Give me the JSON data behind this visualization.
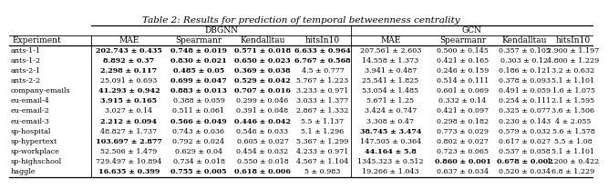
{
  "title": "Table 2: Results for prediction of temporal betweenness centrality",
  "col_headers": [
    "Experiment",
    "MAE",
    "Spearmanr",
    "Kendalltau",
    "hitsIn10",
    "MAE",
    "Spearmanr",
    "Kendalltau",
    "hitsIn10"
  ],
  "group_headers": [
    "DBGNN",
    "GCN"
  ],
  "rows": [
    [
      "ants-1-1",
      "202.743 ± 0.435",
      "0.748 ± 0.019",
      "0.571 ± 0.018",
      "6.633 ± 0.964",
      "207.561 ± 2.603",
      "0.500 ± 0.145",
      "0.357 ± 0.105",
      "2.900 ± 1.197"
    ],
    [
      "ants-1-2",
      "8.892 ± 0.37",
      "0.830 ± 0.021",
      "0.650 ± 0.023",
      "6.767 ± 0.568",
      "14.558 ± 1.373",
      "0.421 ± 0.165",
      "0.303 ± 0.12",
      "4.800 ± 1.229"
    ],
    [
      "ants-2-1",
      "2.298 ± 0.117",
      "0.485 ± 0.05",
      "0.369 ± 0.038",
      "4.5 ± 0.777",
      "3.941 ± 0.487",
      "0.246 ± 0.159",
      "0.186 ± 0.121",
      "3.2 ± 0.632"
    ],
    [
      "ants-2-2",
      "25.091 ± 0.693",
      "0.699 ± 0.047",
      "0.529 ± 0.042",
      "5.767 ± 1.223",
      "25.541 ± 1.825",
      "0.514 ± 0.111",
      "0.378 ± 0.093",
      "5.1 ± 1.101"
    ],
    [
      "company-emails",
      "41.293 ± 0.942",
      "0.883 ± 0.013",
      "0.707 ± 0.016",
      "3.233 ± 0.971",
      "53.054 ± 1.485",
      "0.601 ± 0.069",
      "0.491 ± 0.059",
      "1.6 ± 1.075"
    ],
    [
      "eu-email-4",
      "3.915 ± 0.165",
      "0.388 ± 0.059",
      "0.299 ± 0.046",
      "3.033 ± 1.377",
      "5.671 ± 1.25",
      "0.332 ± 0.14",
      "0.254 ± 0.111",
      "2.1 ± 1.595"
    ],
    [
      "eu-email-2",
      "3.027 ± 0.14",
      "0.511 ± 0.061",
      "0.391 ± 0.048",
      "2.867 ± 1.332",
      "3.424 ± 0.747",
      "0.421 ± 0.097",
      "0.325 ± 0.077",
      "3.6 ± 1.506"
    ],
    [
      "eu-email-3",
      "2.212 ± 0.094",
      "0.566 ± 0.049",
      "0.446 ± 0.042",
      "5.5 ± 1.137",
      "3.308 ± 0.47",
      "0.298 ± 0.182",
      "0.230 ± 0.143",
      "4 ± 2.055"
    ],
    [
      "sp-hospital",
      "48.827 ± 1.737",
      "0.743 ± 0.036",
      "0.546 ± 0.033",
      "5.1 ± 1.296",
      "38.745 ± 3.474",
      "0.773 ± 0.029",
      "0.579 ± 0.032",
      "5.6 ± 1.578"
    ],
    [
      "sp-hypertext",
      "103.697 ± 2.877",
      "0.792 ± 0.024",
      "0.605 ± 0.027",
      "5.367 ± 1.299",
      "147.505 ± 0.364",
      "0.802 ± 0.027",
      "0.617 ± 0.027",
      "5.5 ± 1.08"
    ],
    [
      "sp-workplace",
      "52.506 ± 1.479",
      "0.629 ± 0.04",
      "0.454 ± 0.032",
      "4.233 ± 0.971",
      "44.164 ± 5.8",
      "0.723 ± 0.065",
      "0.537 ± 0.058",
      "5.1 ± 1.101"
    ],
    [
      "sp-highschool",
      "729.497 ± 10.894",
      "0.734 ± 0.018",
      "0.550 ± 0.018",
      "4.567 ± 1.104",
      "1345.323 ± 0.512",
      "0.860 ± 0.001",
      "0.678 ± 0.002",
      "1.200 ± 0.422"
    ],
    [
      "haggle",
      "16.635 ± 0.399",
      "0.755 ± 0.005",
      "0.618 ± 0.006",
      "5 ± 0.983",
      "19.266 ± 1.043",
      "0.637 ± 0.034",
      "0.520 ± 0.034",
      "6.8 ± 1.229"
    ]
  ],
  "bold_cells": {
    "0": [
      1,
      2,
      3,
      4
    ],
    "1": [
      1,
      2,
      3,
      4
    ],
    "2": [
      1,
      2,
      3
    ],
    "3": [
      2,
      3
    ],
    "4": [
      1,
      2,
      3
    ],
    "5": [
      1
    ],
    "6": [],
    "7": [
      1,
      2,
      3
    ],
    "8": [
      5
    ],
    "9": [
      1
    ],
    "10": [
      5
    ],
    "11": [
      6,
      7
    ],
    "12": [
      1,
      2,
      3
    ]
  },
  "title_fontsize": 7.5,
  "header_fontsize": 6.5,
  "cell_fontsize": 5.8
}
